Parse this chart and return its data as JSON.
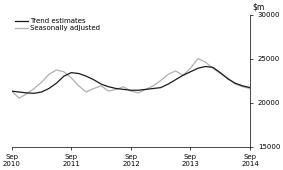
{
  "ylim": [
    15000,
    30000
  ],
  "yticks": [
    15000,
    20000,
    25000,
    30000
  ],
  "xtick_positions": [
    0,
    1,
    2,
    3,
    4
  ],
  "xtick_labels": [
    "Sep\n2010",
    "Sep\n2011",
    "Sep\n2012",
    "Sep\n2013",
    "Sep\n2014"
  ],
  "trend_color": "#1a1a1a",
  "seasonal_color": "#b0b0b0",
  "trend_linewidth": 0.9,
  "seasonal_linewidth": 0.9,
  "legend_labels": [
    "Trend estimates",
    "Seasonally adjusted"
  ],
  "background_color": "#ffffff",
  "trend_data": [
    21300,
    21200,
    21100,
    21050,
    21200,
    21600,
    22200,
    23000,
    23400,
    23300,
    23000,
    22600,
    22100,
    21800,
    21600,
    21500,
    21400,
    21400,
    21500,
    21600,
    21700,
    22100,
    22600,
    23100,
    23500,
    23900,
    24100,
    24000,
    23400,
    22700,
    22200,
    21900,
    21700
  ],
  "seasonal_data": [
    21300,
    20500,
    21000,
    21600,
    22300,
    23200,
    23700,
    23500,
    22800,
    21900,
    21200,
    21600,
    21900,
    21300,
    21500,
    21800,
    21300,
    21100,
    21500,
    21900,
    22500,
    23200,
    23600,
    23100,
    23900,
    25000,
    24600,
    23900,
    23300,
    22800,
    22100,
    21800,
    21600
  ],
  "num_points": 33
}
